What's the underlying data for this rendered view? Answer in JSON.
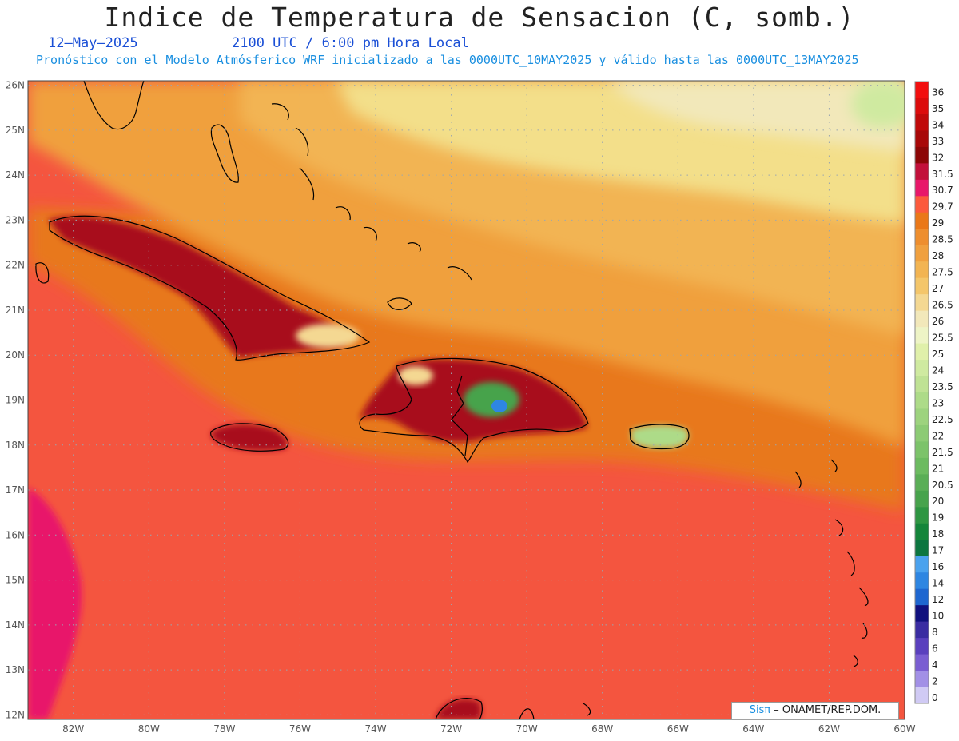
{
  "header": {
    "title": "Indice de Temperatura de Sensacion (C, somb.)",
    "date": "12–May–2025",
    "time": "2100 UTC / 6:00 pm Hora Local",
    "model_line": "Pronóstico con el Modelo Atmósferico WRF inicializado a las 0000UTC_10MAY2025 y válido hasta las  0000UTC_13MAY2025"
  },
  "map": {
    "lon_range": [
      -83.2,
      -60
    ],
    "lat_range": [
      11.9,
      26.1
    ],
    "lat_labels": [
      "26N",
      "25N",
      "24N",
      "23N",
      "22N",
      "21N",
      "20N",
      "19N",
      "18N",
      "17N",
      "16N",
      "15N",
      "14N",
      "13N",
      "12N"
    ],
    "lon_labels": [
      "82W",
      "80W",
      "78W",
      "76W",
      "74W",
      "72W",
      "70W",
      "68W",
      "66W",
      "64W",
      "62W",
      "60W"
    ],
    "colors": {
      "sea_base": "#f4553f",
      "sea_warm": "#e8781c",
      "atlantic": "#f0b048",
      "north_pale": "#f3df8a",
      "land_hot": "#a8101e",
      "coast": "#000000"
    }
  },
  "legend": {
    "labels": [
      "36",
      "35",
      "34",
      "33",
      "32",
      "31.5",
      "30.7",
      "29.7",
      "29",
      "28.5",
      "28",
      "27.5",
      "27",
      "26.5",
      "26",
      "25.5",
      "25",
      "24",
      "23.5",
      "23",
      "22.5",
      "22",
      "21.5",
      "21",
      "20.5",
      "20",
      "19",
      "18",
      "17",
      "16",
      "14",
      "12",
      "10",
      "8",
      "6",
      "4",
      "2",
      "0"
    ],
    "colors": [
      "#f20f0f",
      "#dc0c0c",
      "#c00a0a",
      "#a80808",
      "#8c0606",
      "#c2103a",
      "#e8186a",
      "#fc5a3c",
      "#ea7818",
      "#ee8e2e",
      "#f0a03e",
      "#f2b452",
      "#f4c66a",
      "#f4d892",
      "#f2e8ba",
      "#eef4c6",
      "#e0f0aa",
      "#cfeaa0",
      "#bfe294",
      "#addb88",
      "#9dd37e",
      "#8ccb74",
      "#7cc36a",
      "#6cbb60",
      "#5aae56",
      "#47a34c",
      "#2e9642",
      "#14853a",
      "#0c7640",
      "#4aa2ee",
      "#2e86e2",
      "#1e66d0",
      "#10107e",
      "#3a2ca2",
      "#5a40be",
      "#7a5ed2",
      "#a290e6",
      "#d0caf4"
    ]
  },
  "credit": {
    "brand": "Sisπ",
    "org": " – ONAMET/REP.DOM."
  }
}
